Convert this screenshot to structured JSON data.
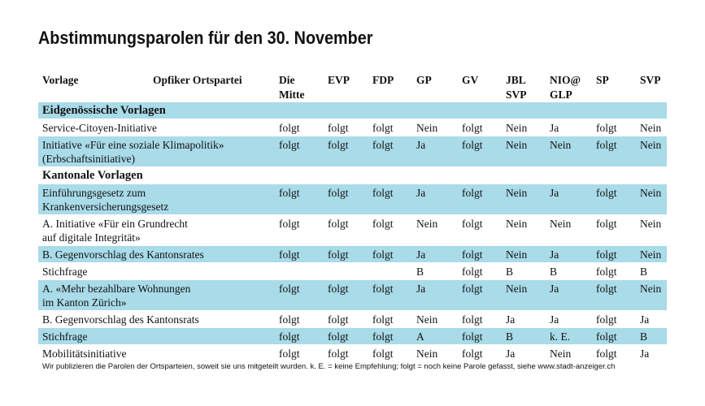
{
  "title": "Abstimmungsparolen für den 30. November",
  "table": {
    "header": {
      "label": "Vorlage",
      "sublabel": "Opfiker Ortspartei",
      "columns": [
        [
          "Die",
          "Mitte"
        ],
        [
          "EVP"
        ],
        [
          "FDP"
        ],
        [
          "GP"
        ],
        [
          "GV"
        ],
        [
          "JBL",
          "SVP"
        ],
        [
          "NIO@",
          "GLP"
        ],
        [
          "SP"
        ],
        [
          "SVP"
        ]
      ]
    },
    "sections": [
      {
        "title": "Eidgenössische Vorlagen",
        "rows": [
          {
            "label": [
              "Service-Citoyen-Initiative"
            ],
            "values": [
              "folgt",
              "folgt",
              "folgt",
              "Nein",
              "folgt",
              "Nein",
              "Ja",
              "folgt",
              "Nein"
            ]
          },
          {
            "label": [
              "Initiative «Für eine soziale Klimapolitik»",
              "(Erbschaftsinitiative)"
            ],
            "values": [
              "folgt",
              "folgt",
              "folgt",
              "Ja",
              "folgt",
              "Nein",
              "Nein",
              "folgt",
              "Nein"
            ]
          }
        ]
      },
      {
        "title": "Kantonale Vorlagen",
        "rows": [
          {
            "label": [
              "Einführungsgesetz zum",
              "Krankenversicherungsgesetz"
            ],
            "values": [
              "folgt",
              "folgt",
              "folgt",
              "Ja",
              "folgt",
              "Nein",
              "Ja",
              "folgt",
              "Nein"
            ]
          },
          {
            "label": [
              "A. Initiative «Für ein Grundrecht",
              "auf digitale Integrität»"
            ],
            "values": [
              "folgt",
              "folgt",
              "folgt",
              "Nein",
              "folgt",
              "Nein",
              "Nein",
              "folgt",
              "Nein"
            ]
          },
          {
            "label": [
              "B. Gegenvorschlag des Kantonsrates"
            ],
            "values": [
              "folgt",
              "folgt",
              "folgt",
              "Ja",
              "folgt",
              "Nein",
              "Ja",
              "folgt",
              "Nein"
            ]
          },
          {
            "label": [
              "Stichfrage"
            ],
            "values": [
              null,
              null,
              null,
              "B",
              "folgt",
              "B",
              "B",
              "folgt",
              "B"
            ]
          },
          {
            "label": [
              "A. «Mehr bezahlbare Wohnungen",
              "im Kanton Zürich»"
            ],
            "values": [
              "folgt",
              "folgt",
              "folgt",
              "Ja",
              "folgt",
              "Nein",
              "Ja",
              "folgt",
              "Nein"
            ]
          },
          {
            "label": [
              "B. Gegenvorschlag des Kantonsrats"
            ],
            "values": [
              "folgt",
              "folgt",
              "folgt",
              "Nein",
              "folgt",
              "Ja",
              "Ja",
              "folgt",
              "Ja"
            ]
          },
          {
            "label": [
              "Stichfrage"
            ],
            "values": [
              "folgt",
              "folgt",
              "folgt",
              "A",
              "folgt",
              "B",
              "k. E.",
              "folgt",
              "B"
            ]
          },
          {
            "label": [
              "Mobilitätsinitiative"
            ],
            "values": [
              "folgt",
              "folgt",
              "folgt",
              "Nein",
              "folgt",
              "Ja",
              "Nein",
              "folgt",
              "Ja"
            ]
          }
        ]
      }
    ]
  },
  "footnote": "Wir publizieren die Parolen der Ortsparteien, soweit sie uns mitgeteilt wurden. k. E. = keine Empfehlung; folgt = noch keine Parole gefasst, siehe www.stadt-anzeiger.ch"
}
